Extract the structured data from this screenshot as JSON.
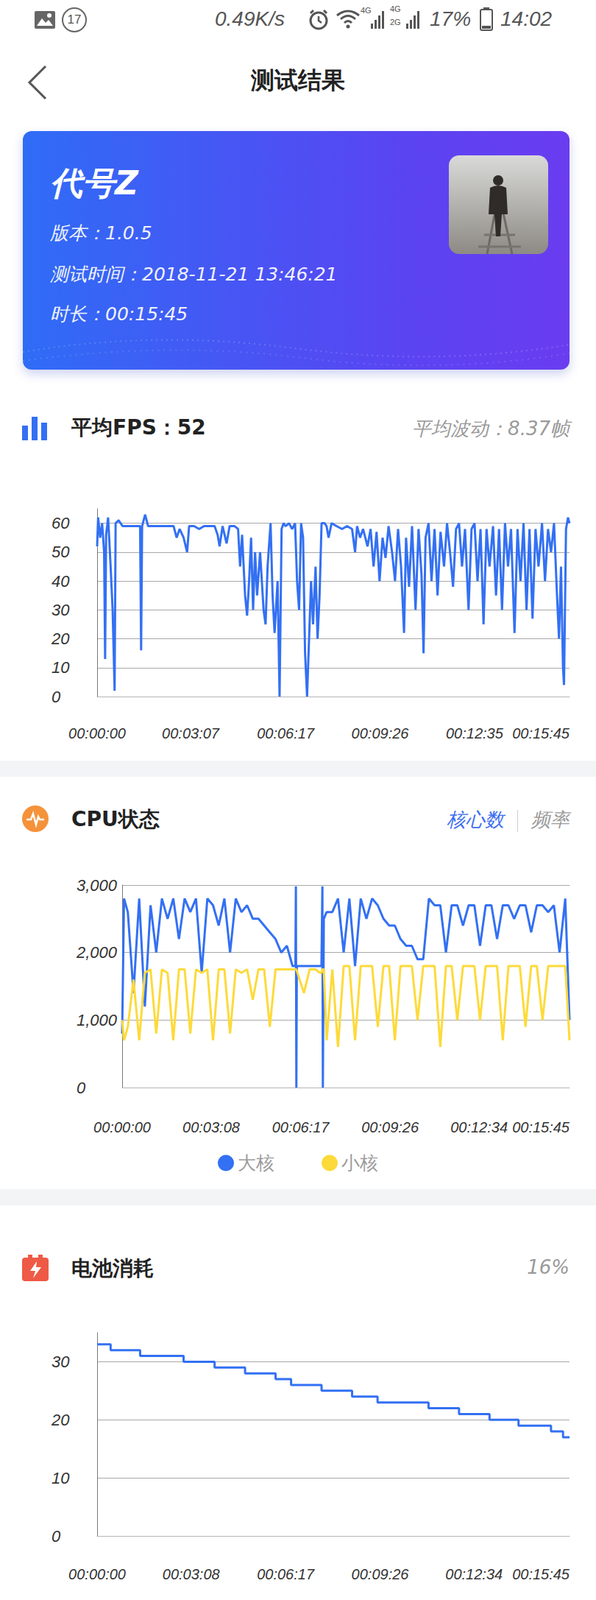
{
  "status_bar": {
    "speed": "0.49K/s",
    "notification_count": "17",
    "network": [
      "4G",
      "4G",
      "2G"
    ],
    "battery": "17%",
    "time": "14:02"
  },
  "header": {
    "title": "测试结果"
  },
  "app_card": {
    "name": "代号Z",
    "version_label": "版本：",
    "version": "1.0.5",
    "test_time_label": "测试时间：",
    "test_time": "2018-11-21 13:46:21",
    "duration_label": "时长：",
    "duration": "00:15:45"
  },
  "chart_data": [
    {
      "type": "line",
      "title": "平均FPS：52",
      "subtitle": "平均波动：8.37帧",
      "color": "#3370f3",
      "grid": true,
      "xlim": [
        0,
        945
      ],
      "xticks": [
        {
          "value": 0,
          "label": "00:00:00"
        },
        {
          "value": 187,
          "label": "00:03:07"
        },
        {
          "value": 377,
          "label": "00:06:17"
        },
        {
          "value": 566,
          "label": "00:09:26"
        },
        {
          "value": 755,
          "label": "00:12:35"
        },
        {
          "value": 945,
          "label": "00:15:45"
        }
      ],
      "ylim": [
        0,
        65
      ],
      "yticks": [
        0,
        10,
        20,
        30,
        40,
        50,
        60
      ],
      "x": [
        0,
        2,
        6,
        10,
        14,
        16,
        18,
        22,
        27,
        31,
        35,
        37,
        43,
        51,
        61,
        71,
        82,
        86,
        88,
        90,
        96,
        102,
        112,
        122,
        133,
        143,
        153,
        159,
        165,
        173,
        180,
        184,
        194,
        204,
        214,
        224,
        235,
        241,
        245,
        251,
        259,
        265,
        275,
        282,
        286,
        290,
        296,
        300,
        304,
        308,
        312,
        316,
        320,
        326,
        333,
        337,
        341,
        347,
        351,
        355,
        361,
        365,
        369,
        373,
        377,
        384,
        390,
        396,
        400,
        404,
        408,
        412,
        416,
        420,
        424,
        428,
        432,
        437,
        441,
        445,
        449,
        455,
        459,
        463,
        469,
        479,
        490,
        500,
        510,
        516,
        520,
        526,
        532,
        541,
        547,
        553,
        559,
        565,
        571,
        577,
        583,
        590,
        596,
        602,
        608,
        614,
        618,
        624,
        630,
        637,
        643,
        649,
        653,
        657,
        663,
        669,
        675,
        681,
        687,
        694,
        700,
        706,
        712,
        718,
        724,
        730,
        736,
        743,
        749,
        755,
        761,
        767,
        773,
        779,
        785,
        792,
        798,
        804,
        810,
        816,
        822,
        828,
        835,
        841,
        847,
        853,
        859,
        865,
        871,
        877,
        883,
        890,
        896,
        902,
        908,
        914,
        920,
        924,
        928,
        932,
        934,
        938,
        942,
        945
      ],
      "values": [
        52,
        62,
        55,
        60,
        50,
        13,
        56,
        62,
        45,
        30,
        2,
        60,
        61,
        59,
        59,
        59,
        59,
        59,
        16,
        59,
        63,
        59,
        59,
        59,
        59,
        59,
        59,
        55,
        58,
        55,
        50,
        59,
        59,
        58,
        59,
        59,
        59,
        56,
        52,
        59,
        53,
        59,
        59,
        58,
        45,
        56,
        35,
        28,
        40,
        55,
        30,
        50,
        35,
        50,
        30,
        25,
        45,
        60,
        35,
        22,
        40,
        0,
        58,
        60,
        59,
        60,
        58,
        60,
        40,
        30,
        60,
        55,
        15,
        0,
        20,
        40,
        25,
        45,
        20,
        35,
        60,
        60,
        59,
        55,
        60,
        59,
        58,
        59,
        58,
        50,
        59,
        55,
        58,
        52,
        58,
        45,
        57,
        40,
        55,
        48,
        59,
        50,
        40,
        58,
        45,
        22,
        55,
        38,
        59,
        30,
        58,
        42,
        15,
        55,
        60,
        40,
        58,
        35,
        57,
        45,
        60,
        50,
        38,
        58,
        60,
        45,
        58,
        30,
        58,
        60,
        40,
        58,
        25,
        58,
        45,
        59,
        35,
        58,
        30,
        60,
        45,
        58,
        22,
        58,
        40,
        60,
        30,
        58,
        27,
        58,
        45,
        60,
        40,
        58,
        50,
        60,
        35,
        20,
        45,
        10,
        4,
        58,
        62,
        60
      ]
    },
    {
      "type": "line",
      "title": "CPU状态",
      "annotations": [
        "核心数",
        "频率"
      ],
      "grid": true,
      "legend": "bottom",
      "xlim": [
        0,
        945
      ],
      "xticks": [
        {
          "value": 0,
          "label": "00:00:00"
        },
        {
          "value": 188,
          "label": "00:03:08"
        },
        {
          "value": 377,
          "label": "00:06:17"
        },
        {
          "value": 566,
          "label": "00:09:26"
        },
        {
          "value": 754,
          "label": "00:12:34"
        },
        {
          "value": 945,
          "label": "00:15:45"
        }
      ],
      "ylim": [
        0,
        3000
      ],
      "yticks": [
        0,
        {
          "value": 1000,
          "label": "1,000"
        },
        {
          "value": 2000,
          "label": "2,000"
        },
        {
          "value": 3000,
          "label": "3,000"
        }
      ],
      "x": [
        0,
        4,
        12,
        24,
        36,
        48,
        60,
        72,
        84,
        96,
        108,
        120,
        132,
        144,
        156,
        168,
        180,
        192,
        204,
        216,
        228,
        240,
        252,
        264,
        276,
        288,
        300,
        312,
        324,
        336,
        348,
        360,
        366,
        367,
        368,
        369,
        384,
        396,
        408,
        418,
        421,
        423,
        424,
        426,
        432,
        444,
        456,
        468,
        480,
        492,
        504,
        516,
        528,
        540,
        552,
        564,
        576,
        588,
        600,
        612,
        624,
        636,
        648,
        660,
        672,
        684,
        696,
        708,
        720,
        732,
        744,
        756,
        768,
        780,
        792,
        804,
        816,
        828,
        840,
        852,
        864,
        876,
        888,
        900,
        912,
        924,
        936,
        945
      ],
      "series": [
        {
          "name": "大核",
          "color": "#3370f3",
          "values": [
            800,
            2800,
            2600,
            1400,
            2800,
            1200,
            2700,
            2000,
            2800,
            2500,
            2800,
            2200,
            2800,
            2600,
            2800,
            1700,
            2800,
            2700,
            2400,
            2800,
            2000,
            2800,
            2600,
            2700,
            2500,
            2500,
            2400,
            2300,
            2200,
            2000,
            2100,
            1800,
            1800,
            2980,
            0,
            1800,
            1800,
            1800,
            1800,
            1800,
            1800,
            2980,
            0,
            2500,
            2600,
            2600,
            2800,
            2000,
            2800,
            1800,
            2800,
            2500,
            2800,
            2700,
            2500,
            2400,
            2400,
            2200,
            2100,
            2100,
            1900,
            1900,
            2800,
            2700,
            2700,
            2000,
            2700,
            2700,
            2400,
            2700,
            2700,
            2100,
            2700,
            2700,
            2200,
            2700,
            2700,
            2500,
            2700,
            2700,
            2300,
            2700,
            2700,
            2600,
            2700,
            2000,
            2800,
            1000
          ]
        },
        {
          "name": "小核",
          "color": "#fdda3a",
          "values": [
            1000,
            700,
            900,
            1600,
            700,
            1700,
            1750,
            800,
            1750,
            1700,
            700,
            1750,
            1750,
            800,
            1750,
            1700,
            1750,
            700,
            1750,
            1750,
            800,
            1750,
            1700,
            1750,
            1300,
            1750,
            1750,
            900,
            1750,
            1750,
            1750,
            1750,
            1750,
            1750,
            1750,
            1750,
            1400,
            1750,
            1750,
            1700,
            1700,
            1750,
            1750,
            1750,
            700,
            1750,
            600,
            1800,
            1800,
            700,
            1800,
            1800,
            1800,
            900,
            1800,
            1800,
            700,
            1800,
            1800,
            1800,
            1000,
            1800,
            1800,
            1800,
            600,
            1800,
            1800,
            1000,
            1800,
            1800,
            1800,
            1000,
            1800,
            1800,
            1800,
            700,
            1800,
            1800,
            1800,
            900,
            1800,
            1800,
            1000,
            1800,
            1800,
            1800,
            1800,
            700
          ]
        }
      ]
    },
    {
      "type": "line",
      "title": "电池消耗",
      "subtitle": "16%",
      "color": "#3370f3",
      "line_style": "step",
      "grid": true,
      "xlim": [
        0,
        945
      ],
      "xticks": [
        {
          "value": 0,
          "label": "00:00:00"
        },
        {
          "value": 188,
          "label": "00:03:08"
        },
        {
          "value": 377,
          "label": "00:06:17"
        },
        {
          "value": 566,
          "label": "00:09:26"
        },
        {
          "value": 754,
          "label": "00:12:34"
        },
        {
          "value": 945,
          "label": "00:15:45"
        }
      ],
      "ylim": [
        0,
        35
      ],
      "yticks": [
        0,
        10,
        20,
        30
      ],
      "x": [
        0,
        27,
        86,
        173,
        235,
        296,
        357,
        388,
        449,
        510,
        561,
        663,
        724,
        785,
        843,
        908,
        932,
        945
      ],
      "values": [
        33,
        32,
        31,
        30,
        29,
        28,
        27,
        26,
        25,
        24,
        23,
        22,
        21,
        20,
        19,
        18,
        17,
        17
      ]
    }
  ]
}
